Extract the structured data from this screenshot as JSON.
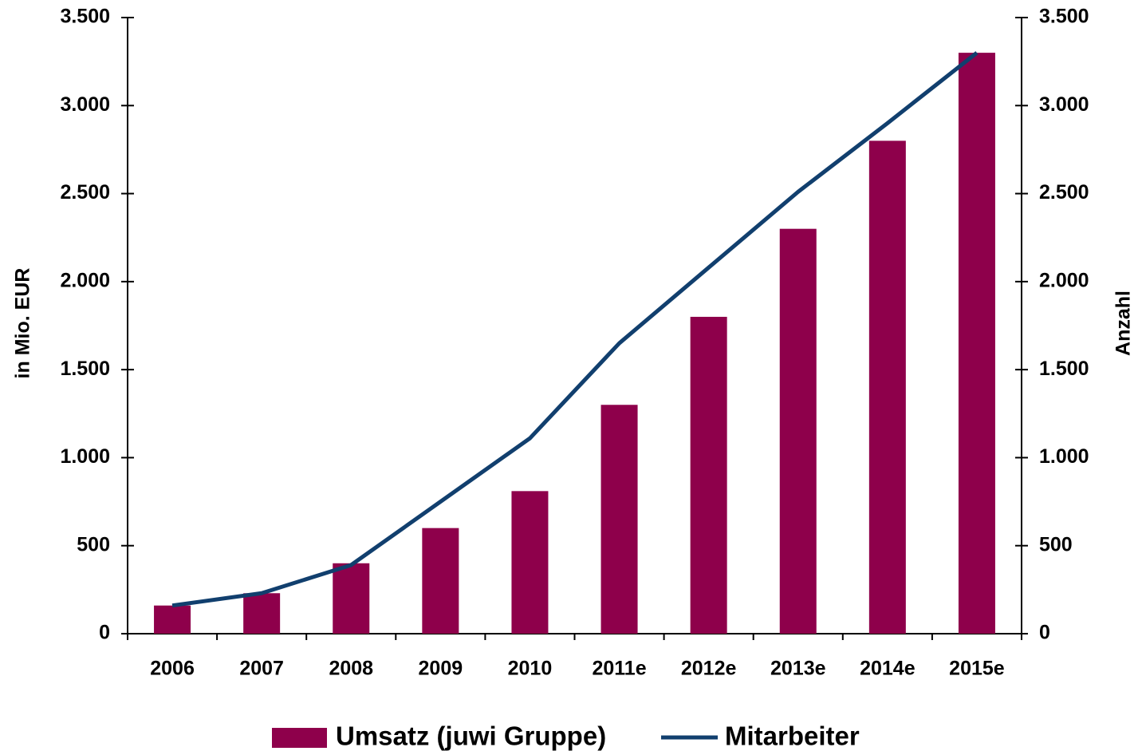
{
  "chart_data": {
    "type": "bar_line",
    "categories": [
      "2006",
      "2007",
      "2008",
      "2009",
      "2010",
      "2011e",
      "2012e",
      "2013e",
      "2014e",
      "2015e"
    ],
    "series": [
      {
        "name": "Umsatz (juwi Gruppe)",
        "type": "bar",
        "color": "#8e004b",
        "values": [
          160,
          230,
          400,
          600,
          810,
          1300,
          1800,
          2300,
          2800,
          3300
        ]
      },
      {
        "name": "Mitarbeiter",
        "type": "line",
        "axis": "y2",
        "color": "#113f6e",
        "values": [
          160,
          230,
          390,
          750,
          1110,
          1650,
          2080,
          2510,
          2900,
          3300
        ]
      }
    ],
    "ylabel": "in Mio. EUR",
    "y2label": "Anzahl",
    "ylim": [
      0,
      3500
    ],
    "yticks": [
      0,
      500,
      {
        "value": 1000,
        "label": "1.000"
      },
      {
        "value": 1500,
        "label": "1.500"
      },
      {
        "value": 2000,
        "label": "2.000"
      },
      {
        "value": 2500,
        "label": "2.500"
      },
      {
        "value": 3000,
        "label": "3.000"
      },
      {
        "value": 3500,
        "label": "3.500"
      }
    ],
    "y2lim": [
      0,
      3500
    ],
    "y2ticks": [
      0,
      500,
      {
        "value": 1000,
        "label": "1.000"
      },
      {
        "value": 1500,
        "label": "1.500"
      },
      {
        "value": 2000,
        "label": "2.000"
      },
      {
        "value": 2500,
        "label": "2.500"
      },
      {
        "value": 3000,
        "label": "3.000"
      },
      {
        "value": 3500,
        "label": "3.500"
      }
    ],
    "legend": "bottom"
  }
}
